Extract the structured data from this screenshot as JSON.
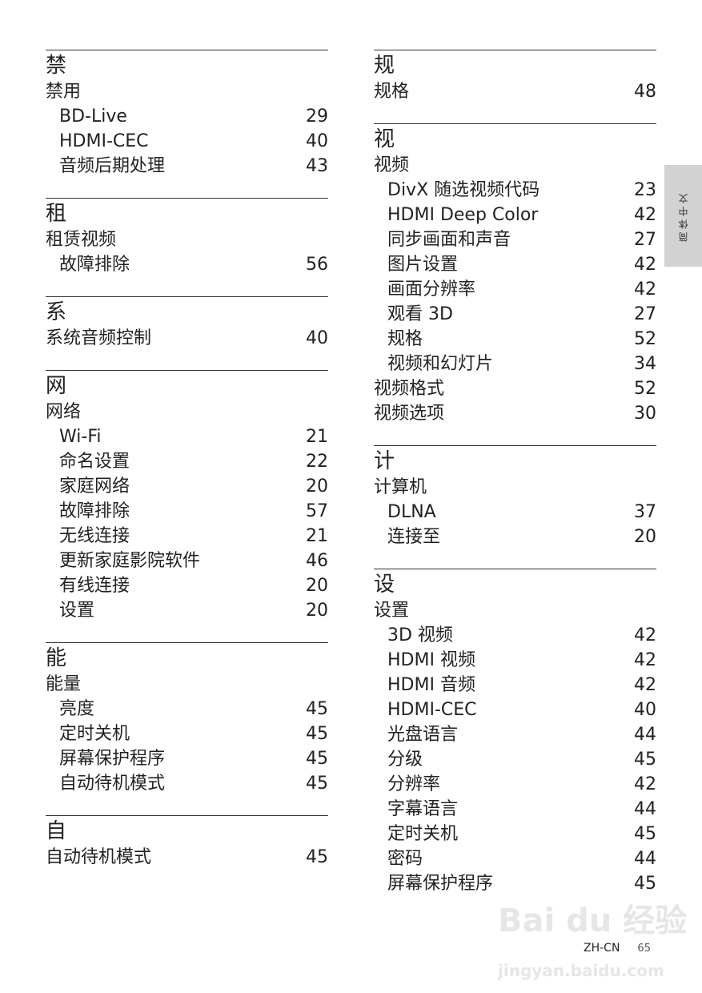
{
  "side_tab": "简体中文",
  "footer": {
    "lang": "ZH-CN",
    "page": "65"
  },
  "watermark": {
    "brand": "Bai du 经验",
    "url": "jingyan.baidu.com"
  },
  "left": [
    {
      "heading": "禁",
      "rows": [
        {
          "label": "禁用",
          "page": "",
          "sub": false
        },
        {
          "label": "BD-Live",
          "page": "29",
          "sub": true
        },
        {
          "label": "HDMI-CEC",
          "page": "40",
          "sub": true
        },
        {
          "label": "音频后期处理",
          "page": "43",
          "sub": true
        }
      ]
    },
    {
      "heading": "租",
      "rows": [
        {
          "label": "租赁视频",
          "page": "",
          "sub": false
        },
        {
          "label": "故障排除",
          "page": "56",
          "sub": true
        }
      ]
    },
    {
      "heading": "系",
      "rows": [
        {
          "label": "系统音频控制",
          "page": "40",
          "sub": false
        }
      ]
    },
    {
      "heading": "网",
      "rows": [
        {
          "label": "网络",
          "page": "",
          "sub": false
        },
        {
          "label": "Wi-Fi",
          "page": "21",
          "sub": true
        },
        {
          "label": "命名设置",
          "page": "22",
          "sub": true
        },
        {
          "label": "家庭网络",
          "page": "20",
          "sub": true
        },
        {
          "label": "故障排除",
          "page": "57",
          "sub": true
        },
        {
          "label": "无线连接",
          "page": "21",
          "sub": true
        },
        {
          "label": "更新家庭影院软件",
          "page": "46",
          "sub": true
        },
        {
          "label": "有线连接",
          "page": "20",
          "sub": true
        },
        {
          "label": "设置",
          "page": "20",
          "sub": true
        }
      ]
    },
    {
      "heading": "能",
      "rows": [
        {
          "label": "能量",
          "page": "",
          "sub": false
        },
        {
          "label": "亮度",
          "page": "45",
          "sub": true
        },
        {
          "label": "定时关机",
          "page": "45",
          "sub": true
        },
        {
          "label": "屏幕保护程序",
          "page": "45",
          "sub": true
        },
        {
          "label": "自动待机模式",
          "page": "45",
          "sub": true
        }
      ]
    },
    {
      "heading": "自",
      "rows": [
        {
          "label": "自动待机模式",
          "page": "45",
          "sub": false
        }
      ]
    }
  ],
  "right": [
    {
      "heading": "规",
      "rows": [
        {
          "label": "规格",
          "page": "48",
          "sub": false
        }
      ]
    },
    {
      "heading": "视",
      "rows": [
        {
          "label": "视频",
          "page": "",
          "sub": false
        },
        {
          "label": "DivX 随选视频代码",
          "page": "23",
          "sub": true
        },
        {
          "label": "HDMI Deep Color",
          "page": "42",
          "sub": true
        },
        {
          "label": "同步画面和声音",
          "page": "27",
          "sub": true
        },
        {
          "label": "图片设置",
          "page": "42",
          "sub": true
        },
        {
          "label": "画面分辨率",
          "page": "42",
          "sub": true
        },
        {
          "label": "观看 3D",
          "page": "27",
          "sub": true
        },
        {
          "label": "规格",
          "page": "52",
          "sub": true
        },
        {
          "label": "视频和幻灯片",
          "page": "34",
          "sub": true
        },
        {
          "label": "视频格式",
          "page": "52",
          "sub": false
        },
        {
          "label": "视频选项",
          "page": "30",
          "sub": false
        }
      ]
    },
    {
      "heading": "计",
      "rows": [
        {
          "label": "计算机",
          "page": "",
          "sub": false
        },
        {
          "label": "DLNA",
          "page": "37",
          "sub": true
        },
        {
          "label": "连接至",
          "page": "20",
          "sub": true
        }
      ]
    },
    {
      "heading": "设",
      "rows": [
        {
          "label": "设置",
          "page": "",
          "sub": false
        },
        {
          "label": "3D 视频",
          "page": "42",
          "sub": true
        },
        {
          "label": "HDMI 视频",
          "page": "42",
          "sub": true
        },
        {
          "label": "HDMI 音频",
          "page": "42",
          "sub": true
        },
        {
          "label": "HDMI-CEC",
          "page": "40",
          "sub": true
        },
        {
          "label": "光盘语言",
          "page": "44",
          "sub": true
        },
        {
          "label": "分级",
          "page": "45",
          "sub": true
        },
        {
          "label": "分辨率",
          "page": "42",
          "sub": true
        },
        {
          "label": "字幕语言",
          "page": "44",
          "sub": true
        },
        {
          "label": "定时关机",
          "page": "45",
          "sub": true
        },
        {
          "label": "密码",
          "page": "44",
          "sub": true
        },
        {
          "label": "屏幕保护程序",
          "page": "45",
          "sub": true
        }
      ]
    }
  ]
}
